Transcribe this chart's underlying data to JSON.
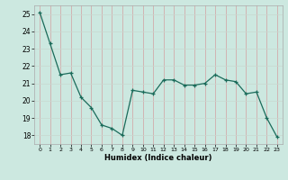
{
  "x": [
    0,
    1,
    2,
    3,
    4,
    5,
    6,
    7,
    8,
    9,
    10,
    11,
    12,
    13,
    14,
    15,
    16,
    17,
    18,
    19,
    20,
    21,
    22,
    23
  ],
  "y": [
    25.1,
    23.3,
    21.5,
    21.6,
    20.2,
    19.6,
    18.6,
    18.4,
    18.0,
    20.6,
    20.5,
    20.4,
    21.2,
    21.2,
    20.9,
    20.9,
    21.0,
    21.5,
    21.2,
    21.1,
    20.4,
    20.5,
    19.0,
    17.9
  ],
  "xlabel": "Humidex (Indice chaleur)",
  "xlim": [
    -0.5,
    23.5
  ],
  "ylim": [
    17.5,
    25.5
  ],
  "yticks": [
    18,
    19,
    20,
    21,
    22,
    23,
    24,
    25
  ],
  "xticks": [
    0,
    1,
    2,
    3,
    4,
    5,
    6,
    7,
    8,
    9,
    10,
    11,
    12,
    13,
    14,
    15,
    16,
    17,
    18,
    19,
    20,
    21,
    22,
    23
  ],
  "line_color": "#1a6b5a",
  "marker_color": "#1a6b5a",
  "plot_bg": "#cce8e0",
  "grid_color_v": "#d4a0a0",
  "grid_color_h": "#c8d8d0"
}
